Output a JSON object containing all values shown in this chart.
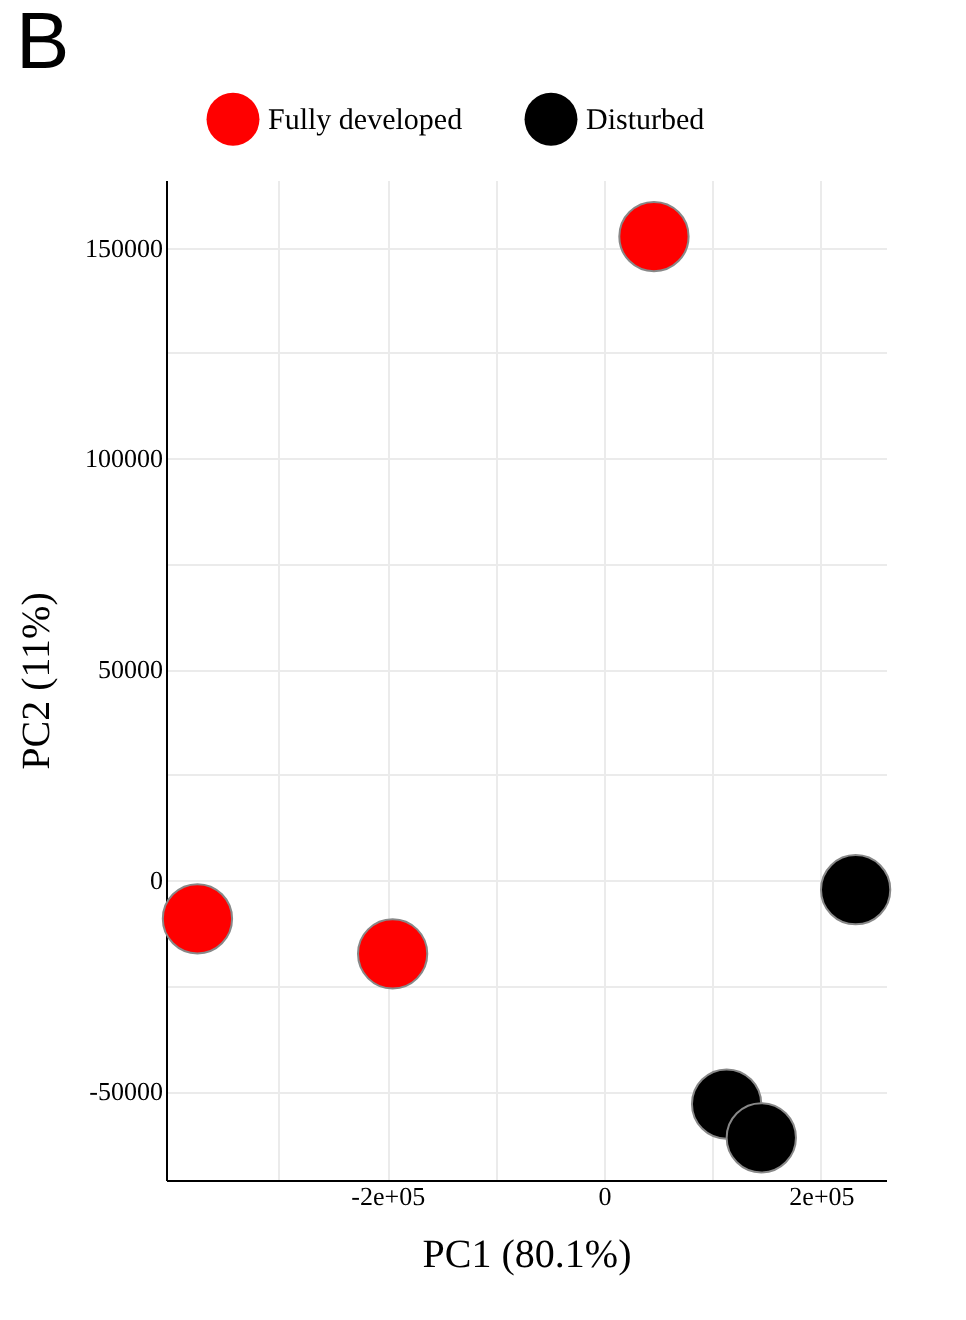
{
  "chart_data": {
    "type": "scatter",
    "annotations": [
      "B"
    ],
    "xlabel": "PC1 (80.1%)",
    "ylabel": "PC2 (11%)",
    "series": [
      {
        "name": "Fully developed",
        "color": "#ff0000",
        "x": [
          46000,
          -375000,
          -195000
        ],
        "values": [
          152600,
          -9100,
          -17400
        ]
      },
      {
        "name": "Disturbed",
        "color": "#000000",
        "x": [
          232000,
          113000,
          145000
        ],
        "values": [
          -2200,
          -53000,
          -61000
        ]
      }
    ],
    "xlim": [
      -404000,
      260000
    ],
    "xticks": [
      {
        "value": -300000,
        "label": null
      },
      {
        "value": -200000,
        "label": "-2e+05"
      },
      {
        "value": -100000,
        "label": null
      },
      0,
      {
        "value": 100000,
        "label": null
      },
      {
        "value": 200000,
        "label": "2e+05"
      }
    ],
    "ylim": [
      -71000,
      166000
    ],
    "yticks": [
      {
        "value": -25000,
        "label": null
      },
      -50000,
      0,
      {
        "value": 25000,
        "label": null
      },
      50000,
      {
        "value": 75000,
        "label": null
      },
      100000,
      {
        "value": 125000,
        "label": null
      },
      150000
    ],
    "grid": true,
    "legend": "top",
    "marker": "circle"
  }
}
